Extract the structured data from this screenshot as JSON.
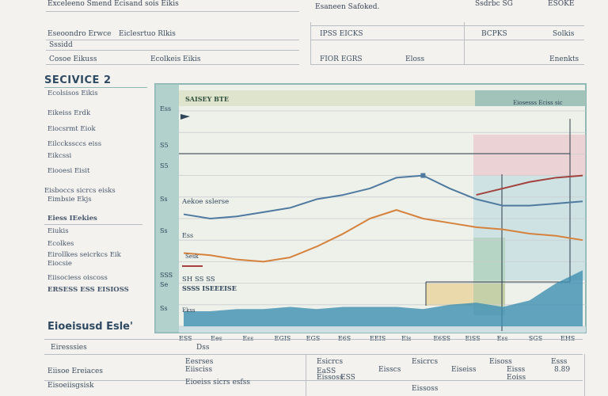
{
  "top_table": {
    "header_left": "Exceleeno Smend Ecisand sois Eikis",
    "header_mid": "Esaneen Safoked.",
    "header_cols": [
      "Ssdrbc SG",
      "ESOKE"
    ],
    "rows": [
      {
        "label": "Eseoondro Erwce",
        "extra": "Eiclesrtuo Rlkis",
        "c1": "IPSS EICKS",
        "c2": "BCPKS",
        "c3": "Solkis"
      },
      {
        "label": "Sssidd",
        "extra": "",
        "c1": "",
        "c2": "",
        "c3": ""
      },
      {
        "label": "Cosoe Eikuss",
        "extra": "Ecolkeis Eikis",
        "c1": "FIOR EGRS",
        "c2": "Eloss",
        "c3": "Enenkts"
      }
    ]
  },
  "sidebar": {
    "title": "SECIVICE 2",
    "items": [
      "Ecolsisos Eikis",
      "Eikeiss Erdk",
      "Eiocsrmt Eiok",
      "Eilcckssccs eiss",
      "Eikcssi",
      "Eiooesi Eisit",
      "Eisboccs sicrcs eisks",
      "Eimbsie Ekjs"
    ],
    "group_title": "Eiess IEekies",
    "group_items": [
      "Eiukis",
      "Ecolkes",
      "Eirollkes seicrkcs Eik",
      "Eiocsie",
      "Eiisociess oiscoss",
      "ERSESS ESS EISIOSS"
    ]
  },
  "chart_data": {
    "type": "line",
    "title": "SAISEY BTE",
    "legend": "Eiosesss Eciss sic",
    "ytick_labels": [
      "Ess",
      "S5",
      "S5",
      "Ss",
      "Ss",
      "SSS",
      "Se",
      "Ss"
    ],
    "xtick_labels": [
      "ESS",
      "Ees",
      "Ess",
      "EGIS",
      "EGS",
      "E6S",
      "EEIS",
      "Eis",
      "E6SS",
      "EiSS",
      "Ess",
      "SGS",
      "EHS"
    ],
    "annotations": [
      "Aekoe sslerse",
      "Ess",
      "Sesk",
      "SH SS SS",
      "SSSS ISEEEISE",
      "Ekss"
    ],
    "ylim": [
      0,
      100
    ],
    "series": [
      {
        "name": "Blue",
        "color": "#4f7aa0",
        "values": [
          52,
          50,
          51,
          53,
          55,
          59,
          61,
          64,
          69,
          70,
          64,
          59,
          56,
          56,
          57,
          58
        ]
      },
      {
        "name": "Red",
        "color": "#a2413d",
        "values": [
          null,
          null,
          null,
          null,
          null,
          null,
          null,
          null,
          null,
          null,
          null,
          61,
          64,
          67,
          69,
          70
        ]
      },
      {
        "name": "Orange",
        "color": "#d5823d",
        "values": [
          34,
          33,
          31,
          30,
          32,
          37,
          43,
          50,
          54,
          50,
          48,
          46,
          45,
          43,
          42,
          40
        ]
      },
      {
        "name": "Teal area",
        "color": "#3d8fb0",
        "values": [
          7,
          7,
          8,
          8,
          9,
          8,
          9,
          9,
          9,
          8,
          10,
          11,
          9,
          12,
          20,
          26
        ]
      }
    ]
  },
  "bottom_section": {
    "title": "Eioeisusd Esle'",
    "items": [
      "Eiresssies",
      "Dss",
      "Eiisoe Ereiaces",
      "Eioeiss sicrs esfss",
      "Eisoeiisgsisk"
    ],
    "col_labels": [
      "Eesrses",
      "Esicrcs",
      "Esicrcs",
      "Eisoss",
      "Esss"
    ],
    "cells": [
      "Eiisciss",
      "EaSS",
      "Eisscs",
      "Eiseiss",
      "Eisss",
      "Eissoss",
      "ESS",
      "Eoiss",
      "8.89",
      "Eissoss"
    ]
  },
  "colors": {
    "background": "#f3f2ee",
    "chart_border": "#8fb8b5",
    "chart_header": "#dfe4cc",
    "accent_pink": "#e8bac3",
    "accent_yellow": "#e8cf8e"
  }
}
